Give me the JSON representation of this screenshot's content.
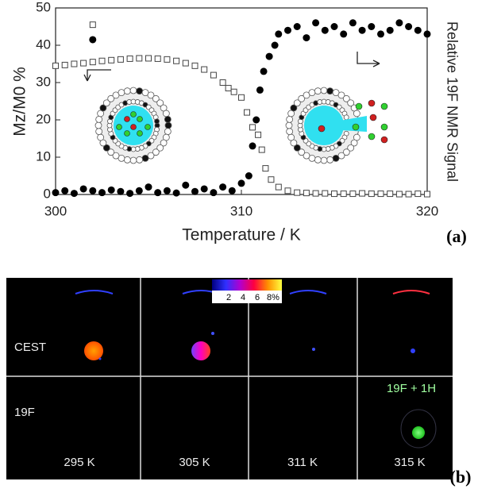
{
  "chart_data": {
    "type": "scatter",
    "xlabel": "Temperature / K",
    "ylabel": "Mz/M0 %",
    "y2label": "Relative 19F NMR Signal",
    "xlim": [
      300,
      320
    ],
    "xticks": [
      300,
      310,
      320
    ],
    "ylim": [
      0,
      50
    ],
    "yticks": [
      0,
      10,
      20,
      30,
      40,
      50
    ],
    "series": [
      {
        "marker": "square",
        "color": "#444",
        "x": [
          300,
          300.5,
          301,
          301.5,
          302,
          302,
          302.5,
          303,
          303.5,
          304,
          304.5,
          305,
          305.5,
          306,
          306.5,
          307,
          307.5,
          308,
          308.5,
          309,
          309.3,
          309.6,
          310,
          310.3,
          310.6,
          310.9,
          311.1,
          311.3,
          311.6,
          312,
          312.5,
          313,
          313.5,
          314,
          314.5,
          315,
          315.5,
          316,
          316.5,
          317,
          317.5,
          318,
          318.5,
          319,
          319.5,
          320
        ],
        "values": [
          34.5,
          34.7,
          35,
          35.2,
          35.5,
          45.5,
          35.8,
          36,
          36.2,
          36.4,
          36.5,
          36.5,
          36.4,
          36.2,
          35.8,
          35.2,
          34.5,
          33.5,
          32,
          30,
          28.5,
          27.5,
          26,
          22,
          18,
          16,
          12,
          7,
          4,
          2,
          1,
          0.5,
          0.4,
          0.3,
          0.3,
          0.2,
          0.2,
          0.2,
          0.3,
          0.2,
          0.2,
          0.2,
          0.1,
          0.1,
          0.2,
          0.1
        ]
      },
      {
        "marker": "circle",
        "color": "#000",
        "x": [
          300,
          300.5,
          301,
          301.5,
          302,
          302,
          302.5,
          303,
          303.5,
          304,
          304.5,
          305,
          305.5,
          306,
          306.5,
          307,
          307.5,
          308,
          308.5,
          309,
          309.5,
          310,
          310.4,
          310.6,
          310.8,
          311,
          311.2,
          311.5,
          311.8,
          312,
          312.5,
          313,
          313.5,
          314,
          314.5,
          315,
          315.5,
          316,
          316.5,
          317,
          317.5,
          318,
          318.5,
          319,
          319.5,
          320
        ],
        "values": [
          0.5,
          1,
          0.3,
          1.5,
          1,
          41.5,
          0.5,
          1.2,
          0.8,
          0.3,
          1,
          2,
          0.5,
          1,
          0.4,
          2.5,
          0.8,
          1.5,
          0.5,
          2,
          1,
          3,
          5,
          13,
          20,
          28,
          33,
          37,
          40,
          43,
          44,
          45,
          42,
          46,
          44,
          45,
          43,
          46,
          44,
          45,
          43,
          44,
          46,
          45,
          44,
          43
        ]
      }
    ]
  },
  "panel_labels": [
    "(a)",
    "(b)"
  ],
  "panel_b": {
    "row_labels": [
      "CEST",
      "19F"
    ],
    "column_labels": [
      "295 K",
      "305 K",
      "311 K",
      "315 K"
    ],
    "colorbar_labels": [
      "2",
      "4",
      "6",
      "8%"
    ],
    "overlay_label": "19F + 1H"
  }
}
